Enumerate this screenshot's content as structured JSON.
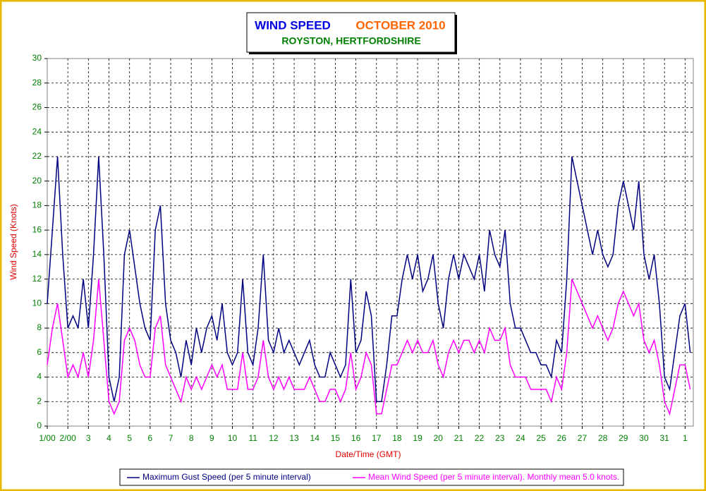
{
  "chart_data": {
    "type": "line",
    "title": "WIND SPEED",
    "title_period": "OCTOBER 2010",
    "subtitle": "ROYSTON, HERTFORDSHIRE",
    "x_label": "Date/Time (GMT)",
    "y_label": "Wind Speed (Knots)",
    "xlim": [
      0,
      31.4
    ],
    "ylim": [
      0,
      30
    ],
    "xticks": [
      {
        "value": 0,
        "label": "1/00"
      },
      {
        "value": 1,
        "label": "2/00"
      },
      {
        "value": 2,
        "label": "3"
      },
      {
        "value": 3,
        "label": "4"
      },
      {
        "value": 4,
        "label": "5"
      },
      {
        "value": 5,
        "label": "6"
      },
      {
        "value": 6,
        "label": "7"
      },
      {
        "value": 7,
        "label": "8"
      },
      {
        "value": 8,
        "label": "9"
      },
      {
        "value": 9,
        "label": "10"
      },
      {
        "value": 10,
        "label": "11"
      },
      {
        "value": 11,
        "label": "12"
      },
      {
        "value": 12,
        "label": "13"
      },
      {
        "value": 13,
        "label": "14"
      },
      {
        "value": 14,
        "label": "15"
      },
      {
        "value": 15,
        "label": "16"
      },
      {
        "value": 16,
        "label": "17"
      },
      {
        "value": 17,
        "label": "18"
      },
      {
        "value": 18,
        "label": "19"
      },
      {
        "value": 19,
        "label": "20"
      },
      {
        "value": 20,
        "label": "21"
      },
      {
        "value": 21,
        "label": "22"
      },
      {
        "value": 22,
        "label": "23"
      },
      {
        "value": 23,
        "label": "24"
      },
      {
        "value": 24,
        "label": "25"
      },
      {
        "value": 25,
        "label": "26"
      },
      {
        "value": 26,
        "label": "27"
      },
      {
        "value": 27,
        "label": "28"
      },
      {
        "value": 28,
        "label": "29"
      },
      {
        "value": 29,
        "label": "30"
      },
      {
        "value": 30,
        "label": "31"
      },
      {
        "value": 31,
        "label": "1"
      }
    ],
    "yticks": [
      0,
      2,
      4,
      6,
      8,
      10,
      12,
      14,
      16,
      18,
      20,
      22,
      24,
      26,
      28,
      30
    ],
    "grid": true,
    "x": [
      0,
      0.25,
      0.5,
      0.75,
      1,
      1.25,
      1.5,
      1.75,
      2,
      2.25,
      2.5,
      2.75,
      3,
      3.25,
      3.5,
      3.75,
      4,
      4.25,
      4.5,
      4.75,
      5,
      5.25,
      5.5,
      5.75,
      6,
      6.25,
      6.5,
      6.75,
      7,
      7.25,
      7.5,
      7.75,
      8,
      8.25,
      8.5,
      8.75,
      9,
      9.25,
      9.5,
      9.75,
      10,
      10.25,
      10.5,
      10.75,
      11,
      11.25,
      11.5,
      11.75,
      12,
      12.25,
      12.5,
      12.75,
      13,
      13.25,
      13.5,
      13.75,
      14,
      14.25,
      14.5,
      14.75,
      15,
      15.25,
      15.5,
      15.75,
      16,
      16.25,
      16.5,
      16.75,
      17,
      17.25,
      17.5,
      17.75,
      18,
      18.25,
      18.5,
      18.75,
      19,
      19.25,
      19.5,
      19.75,
      20,
      20.25,
      20.5,
      20.75,
      21,
      21.25,
      21.5,
      21.75,
      22,
      22.25,
      22.5,
      22.75,
      23,
      23.25,
      23.5,
      23.75,
      24,
      24.25,
      24.5,
      24.75,
      25,
      25.25,
      25.5,
      25.75,
      26,
      26.25,
      26.5,
      26.75,
      27,
      27.25,
      27.5,
      27.75,
      28,
      28.25,
      28.5,
      28.75,
      29,
      29.25,
      29.5,
      29.75,
      30,
      30.25,
      30.5,
      30.75,
      31,
      31.25
    ],
    "series": [
      {
        "name": "Maximum Gust Speed (per 5 minute interval)",
        "color": "#000080",
        "values": [
          10,
          16,
          22,
          14,
          8,
          9,
          8,
          12,
          8,
          14,
          22,
          14,
          4,
          2,
          4,
          14,
          16,
          13,
          10,
          8,
          7,
          16,
          18,
          10,
          7,
          6,
          4,
          7,
          5,
          8,
          6,
          8,
          9,
          7,
          10,
          6,
          5,
          6,
          12,
          6,
          5,
          8,
          14,
          7,
          6,
          8,
          6,
          7,
          6,
          5,
          6,
          7,
          5,
          4,
          4,
          6,
          5,
          4,
          5,
          12,
          6,
          7,
          11,
          9,
          2,
          2,
          5,
          9,
          9,
          12,
          14,
          12,
          14,
          11,
          12,
          14,
          10,
          8,
          12,
          14,
          12,
          14,
          13,
          12,
          14,
          11,
          16,
          14,
          13,
          16,
          10,
          8,
          8,
          7,
          6,
          6,
          5,
          5,
          4,
          7,
          6,
          12,
          22,
          20,
          18,
          16,
          14,
          16,
          14,
          13,
          14,
          18,
          20,
          18,
          16,
          20,
          14,
          12,
          14,
          10,
          4,
          3,
          6,
          9,
          10,
          6
        ]
      },
      {
        "name": "Mean Wind Speed (per 5 minute interval). Monthly mean 5.0 knots.",
        "color": "#ff00ff",
        "values": [
          5,
          8,
          10,
          7,
          4,
          5,
          4,
          6,
          4,
          7,
          12,
          7,
          2,
          1,
          2,
          7,
          8,
          7,
          5,
          4,
          4,
          8,
          9,
          5,
          4,
          3,
          2,
          4,
          3,
          4,
          3,
          4,
          5,
          4,
          5,
          3,
          3,
          3,
          6,
          3,
          3,
          4,
          7,
          4,
          3,
          4,
          3,
          4,
          3,
          3,
          3,
          4,
          3,
          2,
          2,
          3,
          3,
          2,
          3,
          6,
          3,
          4,
          6,
          5,
          1,
          1,
          3,
          5,
          5,
          6,
          7,
          6,
          7,
          6,
          6,
          7,
          5,
          4,
          6,
          7,
          6,
          7,
          7,
          6,
          7,
          6,
          8,
          7,
          7,
          8,
          5,
          4,
          4,
          4,
          3,
          3,
          3,
          3,
          2,
          4,
          3,
          6,
          12,
          11,
          10,
          9,
          8,
          9,
          8,
          7,
          8,
          10,
          11,
          10,
          9,
          10,
          7,
          6,
          7,
          5,
          2,
          1,
          3,
          5,
          5,
          3
        ]
      }
    ]
  }
}
